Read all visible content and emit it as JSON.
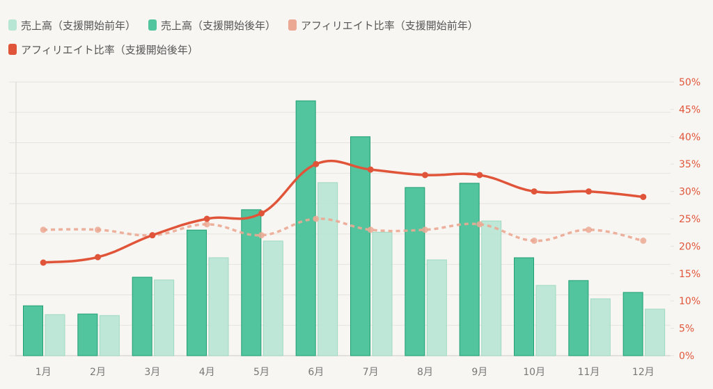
{
  "chart_data": {
    "type": "bar+line",
    "categories": [
      "1月",
      "2月",
      "3月",
      "4月",
      "5月",
      "6月",
      "7月",
      "8月",
      "9月",
      "10月",
      "11月",
      "12月"
    ],
    "series": [
      {
        "name": "売上高（支援開始前年）",
        "type": "bar",
        "axis": "left",
        "color": "#b8e6d4",
        "values": [
          1.35,
          1.32,
          2.49,
          3.22,
          3.77,
          5.69,
          4.06,
          3.15,
          4.43,
          2.31,
          1.87,
          1.53
        ]
      },
      {
        "name": "売上高（支援開始後年）",
        "type": "bar",
        "axis": "left",
        "color": "#52c59e",
        "values": [
          1.64,
          1.37,
          2.58,
          4.13,
          4.8,
          8.38,
          7.2,
          5.53,
          5.67,
          3.22,
          2.47,
          2.08
        ]
      },
      {
        "name": "アフィリエイト比率（支援開始前年）",
        "type": "line",
        "axis": "right",
        "dashed": true,
        "color": "#eba994",
        "values": [
          23,
          23,
          22,
          24,
          22,
          25,
          23,
          23,
          24,
          21,
          23,
          21
        ]
      },
      {
        "name": "アフィリエイト比率（支援開始後年）",
        "type": "line",
        "axis": "right",
        "dashed": false,
        "color": "#e0553a",
        "values": [
          17,
          18,
          22,
          25,
          26,
          35,
          34,
          33,
          33,
          30,
          30,
          29
        ]
      }
    ],
    "left_axis": {
      "range": [
        0,
        9
      ],
      "labels_shown": false
    },
    "right_axis": {
      "range": [
        0,
        50
      ],
      "tick_labels": [
        "0%",
        "5%",
        "10%",
        "15%",
        "20%",
        "25%",
        "30%",
        "35%",
        "40%",
        "45%",
        "50%"
      ]
    },
    "legend_placement": "top-left",
    "grid": true
  }
}
